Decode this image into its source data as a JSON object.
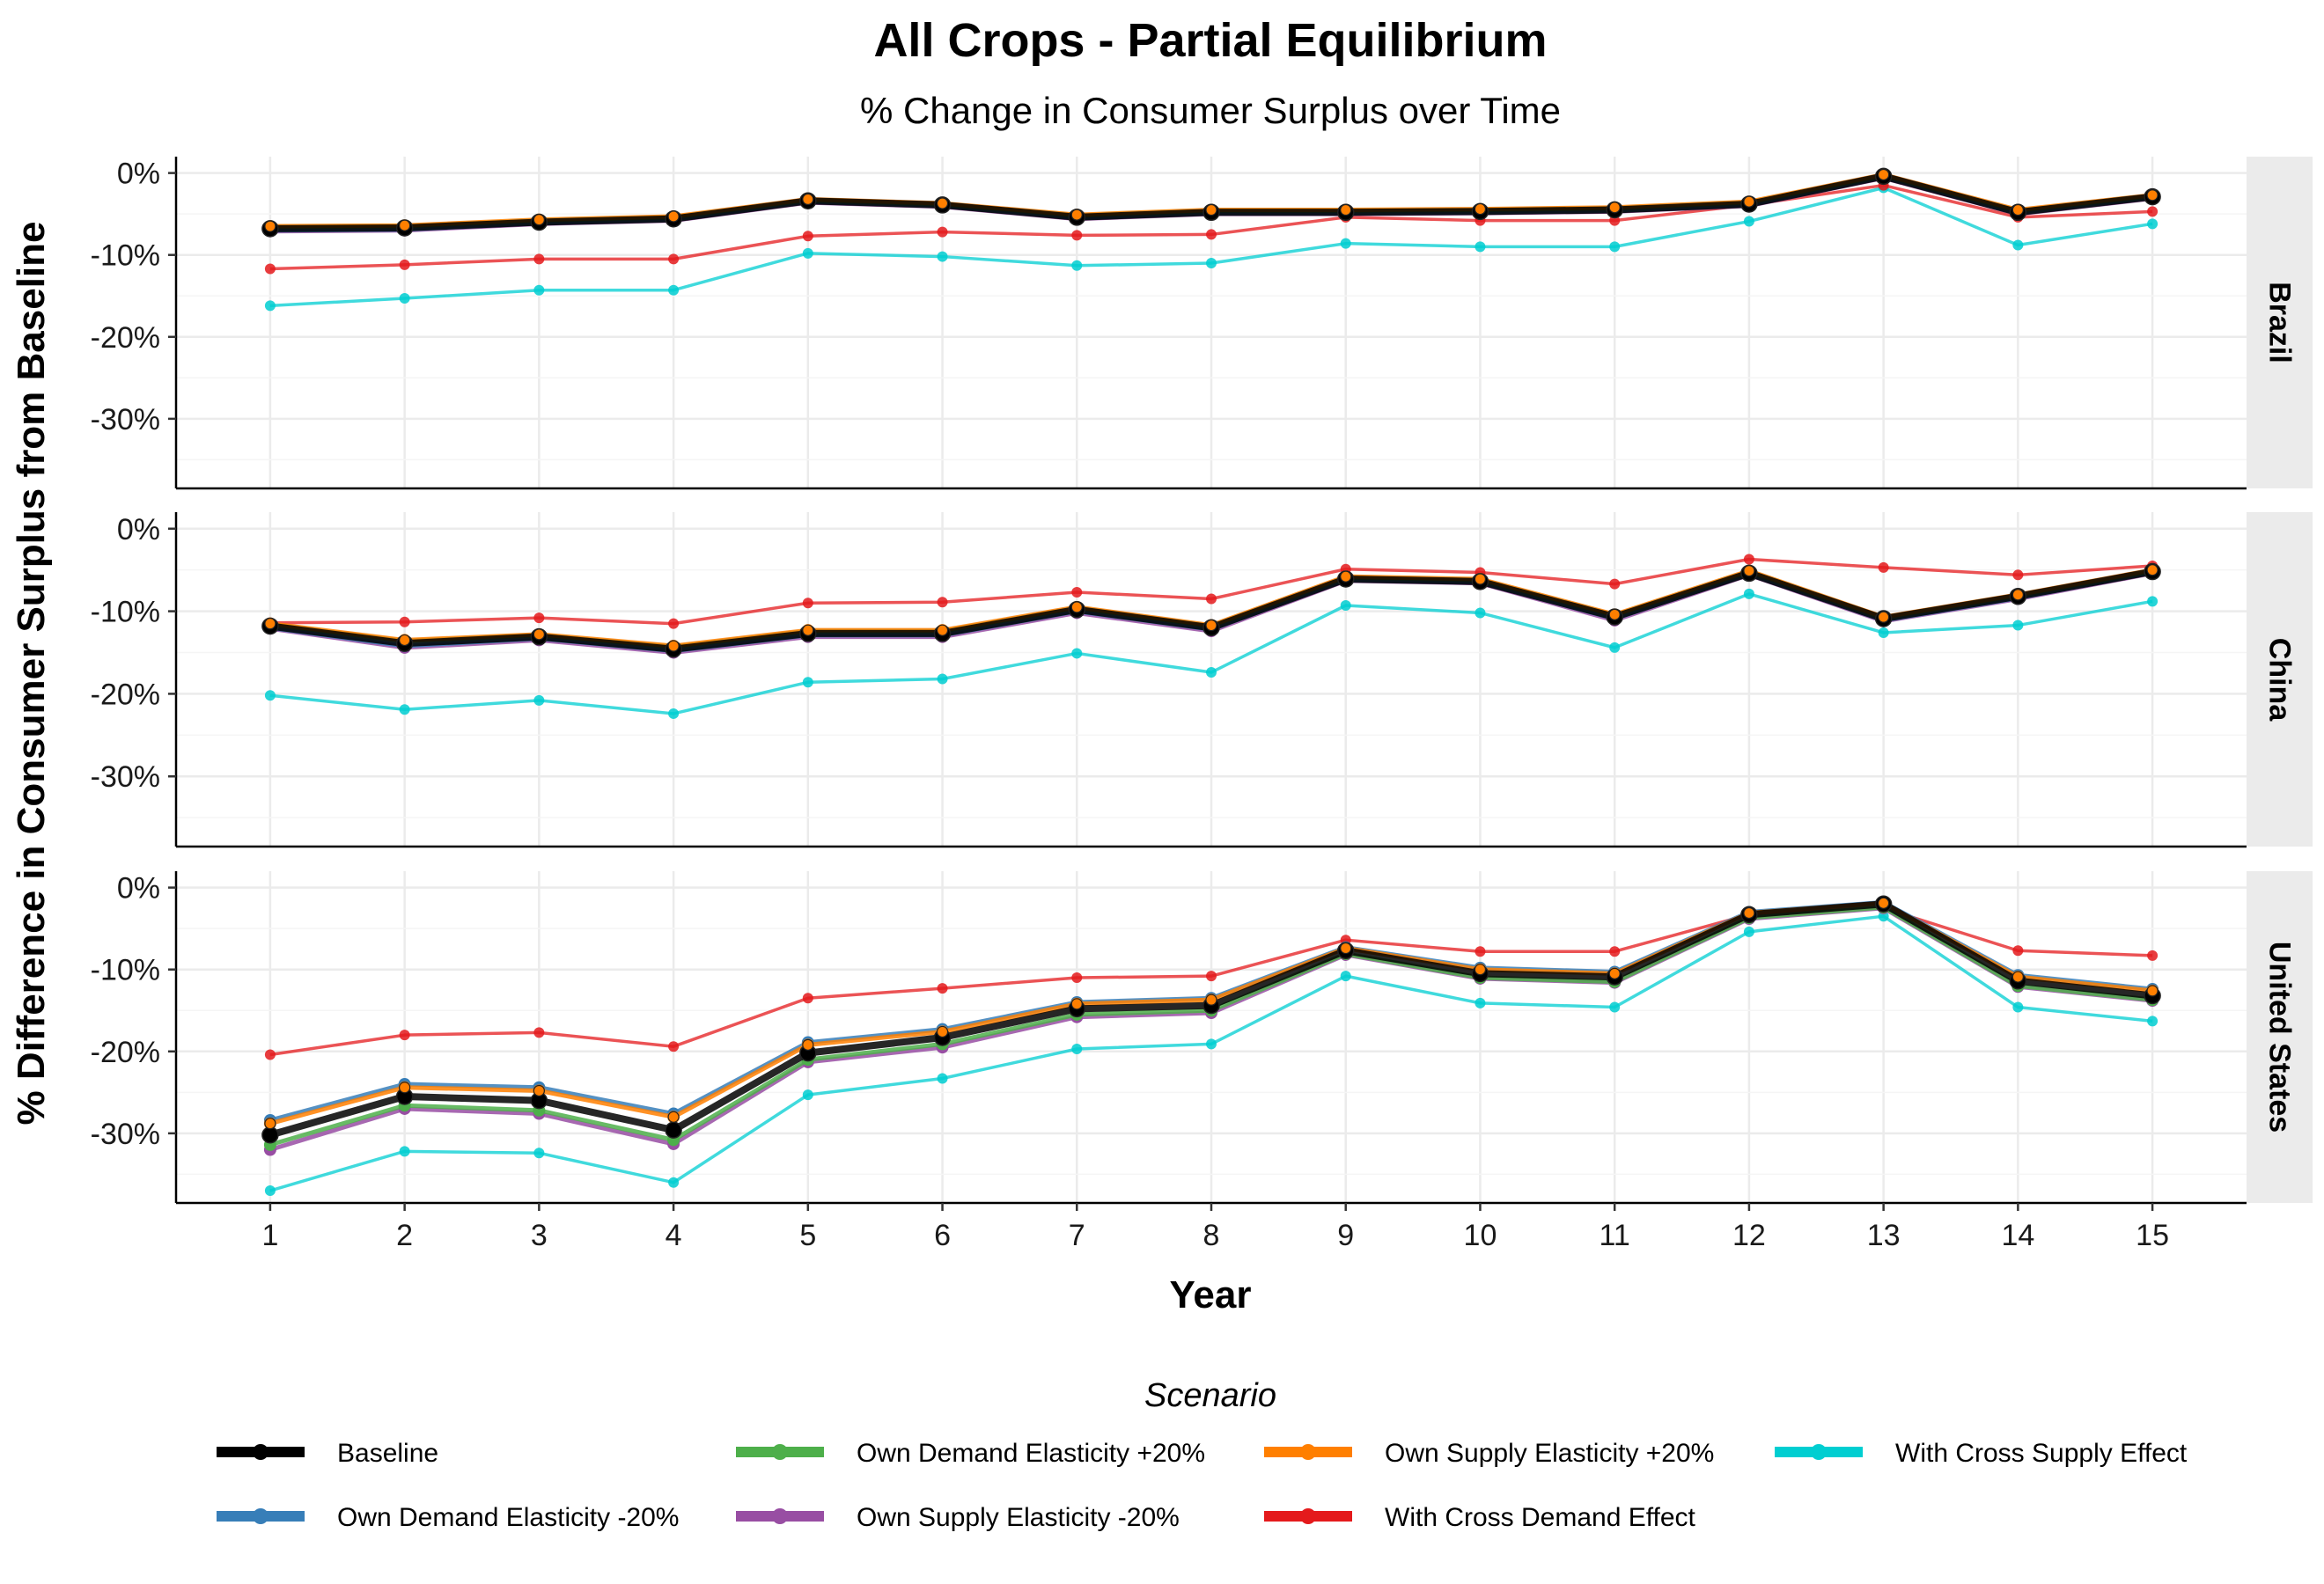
{
  "title": "All Crops - Partial Equilibrium",
  "subtitle": "% Change in Consumer Surplus over Time",
  "chart_data": {
    "type": "line",
    "xlabel": "Year",
    "ylabel": "% Difference in Consumer Surplus from Baseline",
    "x": [
      1,
      2,
      3,
      4,
      5,
      6,
      7,
      8,
      9,
      10,
      11,
      12,
      13,
      14,
      15
    ],
    "xlim": [
      0.3,
      15.7
    ],
    "ylim": [
      -38.5,
      2
    ],
    "y_ticks": [
      0,
      -10,
      -20,
      -30
    ],
    "y_tick_labels": [
      "0%",
      "-10%",
      "-20%",
      "-30%"
    ],
    "grid": true,
    "legend_title": "Scenario",
    "legend_position": "bottom",
    "panels": [
      {
        "label": "Brazil",
        "series": [
          {
            "name": "With Cross Supply Effect",
            "values": [
              -16.2,
              -15.3,
              -14.3,
              -14.3,
              -9.8,
              -10.2,
              -11.3,
              -11.0,
              -8.6,
              -9.0,
              -9.0,
              -5.9,
              -1.8,
              -8.8,
              -6.2
            ]
          },
          {
            "name": "With Cross Demand Effect",
            "values": [
              -11.7,
              -11.2,
              -10.5,
              -10.5,
              -7.7,
              -7.2,
              -7.6,
              -7.5,
              -5.4,
              -5.8,
              -5.8,
              -3.9,
              -1.5,
              -5.4,
              -4.7
            ]
          },
          {
            "name": "Own Supply Elasticity -20%",
            "values": [
              -7.1,
              -7.0,
              -6.2,
              -5.8,
              -3.6,
              -4.1,
              -5.6,
              -5.0,
              -5.0,
              -4.9,
              -4.7,
              -4.0,
              -0.6,
              -5.0,
              -3.1
            ]
          },
          {
            "name": "Own Demand Elasticity -20%",
            "values": [
              -7.0,
              -6.9,
              -6.1,
              -5.7,
              -3.5,
              -4.0,
              -5.5,
              -4.9,
              -4.9,
              -4.8,
              -4.6,
              -3.9,
              -0.5,
              -4.9,
              -3.0
            ]
          },
          {
            "name": "Own Demand Elasticity +20%",
            "values": [
              -6.6,
              -6.5,
              -5.8,
              -5.4,
              -3.3,
              -3.8,
              -5.2,
              -4.6,
              -4.6,
              -4.5,
              -4.3,
              -3.6,
              -0.3,
              -4.6,
              -2.8
            ]
          },
          {
            "name": "Own Supply Elasticity +20%",
            "values": [
              -6.5,
              -6.4,
              -5.7,
              -5.3,
              -3.2,
              -3.7,
              -5.1,
              -4.5,
              -4.5,
              -4.4,
              -4.2,
              -3.5,
              -0.2,
              -4.5,
              -2.7
            ]
          },
          {
            "name": "Baseline",
            "values": [
              -6.8,
              -6.7,
              -6.0,
              -5.6,
              -3.4,
              -3.9,
              -5.4,
              -4.8,
              -4.8,
              -4.7,
              -4.5,
              -3.8,
              -0.4,
              -4.8,
              -2.9
            ]
          }
        ]
      },
      {
        "label": "China",
        "series": [
          {
            "name": "With Cross Supply Effect",
            "values": [
              -20.2,
              -21.9,
              -20.8,
              -22.4,
              -18.6,
              -18.2,
              -15.1,
              -17.4,
              -9.3,
              -10.2,
              -14.4,
              -7.9,
              -12.6,
              -11.7,
              -8.8
            ]
          },
          {
            "name": "With Cross Demand Effect",
            "values": [
              -11.4,
              -11.3,
              -10.8,
              -11.5,
              -9.0,
              -8.9,
              -7.7,
              -8.5,
              -4.9,
              -5.3,
              -6.7,
              -3.7,
              -4.7,
              -5.6,
              -4.5
            ]
          },
          {
            "name": "Own Supply Elasticity -20%",
            "values": [
              -12.1,
              -14.4,
              -13.5,
              -15.0,
              -13.1,
              -13.1,
              -10.2,
              -12.4,
              -6.3,
              -6.6,
              -11.1,
              -5.6,
              -11.2,
              -8.5,
              -5.4
            ]
          },
          {
            "name": "Own Demand Elasticity -20%",
            "values": [
              -12.0,
              -14.2,
              -13.3,
              -14.8,
              -12.9,
              -12.9,
              -10.0,
              -12.2,
              -6.2,
              -6.5,
              -10.9,
              -5.5,
              -11.1,
              -8.4,
              -5.3
            ]
          },
          {
            "name": "Own Demand Elasticity +20%",
            "values": [
              -11.6,
              -13.6,
              -12.9,
              -14.3,
              -12.4,
              -12.4,
              -9.6,
              -11.8,
              -5.9,
              -6.2,
              -10.5,
              -5.2,
              -10.8,
              -8.1,
              -5.1
            ]
          },
          {
            "name": "Own Supply Elasticity +20%",
            "values": [
              -11.5,
              -13.5,
              -12.8,
              -14.2,
              -12.3,
              -12.3,
              -9.5,
              -11.7,
              -5.8,
              -6.1,
              -10.4,
              -5.1,
              -10.7,
              -8.0,
              -5.0
            ]
          },
          {
            "name": "Baseline",
            "values": [
              -11.8,
              -13.9,
              -13.1,
              -14.6,
              -12.7,
              -12.7,
              -9.8,
              -12.0,
              -6.1,
              -6.4,
              -10.7,
              -5.4,
              -10.9,
              -8.2,
              -5.2
            ]
          }
        ]
      },
      {
        "label": "United States",
        "series": [
          {
            "name": "With Cross Supply Effect",
            "values": [
              -37.0,
              -32.2,
              -32.4,
              -36.0,
              -25.3,
              -23.3,
              -19.7,
              -19.1,
              -10.8,
              -14.1,
              -14.6,
              -5.4,
              -3.5,
              -14.6,
              -16.3
            ]
          },
          {
            "name": "With Cross Demand Effect",
            "values": [
              -20.4,
              -18.0,
              -17.7,
              -19.4,
              -13.5,
              -12.3,
              -11.0,
              -10.8,
              -6.4,
              -7.8,
              -7.8,
              -3.3,
              -2.5,
              -7.7,
              -8.3
            ]
          },
          {
            "name": "Own Supply Elasticity -20%",
            "values": [
              -32.0,
              -27.0,
              -27.6,
              -31.3,
              -21.3,
              -19.5,
              -15.8,
              -15.3,
              -8.2,
              -11.1,
              -11.6,
              -3.8,
              -2.5,
              -12.1,
              -13.8
            ]
          },
          {
            "name": "Own Demand Elasticity -20%",
            "values": [
              -28.4,
              -24.0,
              -24.4,
              -27.6,
              -18.9,
              -17.3,
              -14.0,
              -13.5,
              -7.3,
              -9.8,
              -10.3,
              -3.0,
              -1.8,
              -10.7,
              -12.4
            ]
          },
          {
            "name": "Own Demand Elasticity +20%",
            "values": [
              -31.4,
              -26.6,
              -27.2,
              -30.8,
              -21.0,
              -19.1,
              -15.5,
              -15.0,
              -8.1,
              -11.0,
              -11.5,
              -3.7,
              -2.4,
              -12.0,
              -13.7
            ]
          },
          {
            "name": "Own Supply Elasticity +20%",
            "values": [
              -28.8,
              -24.4,
              -24.8,
              -28.0,
              -19.2,
              -17.6,
              -14.2,
              -13.7,
              -7.4,
              -10.0,
              -10.5,
              -3.1,
              -1.9,
              -10.9,
              -12.6
            ]
          },
          {
            "name": "Baseline",
            "values": [
              -30.2,
              -25.5,
              -26.0,
              -29.6,
              -20.2,
              -18.3,
              -14.8,
              -14.4,
              -7.7,
              -10.5,
              -10.9,
              -3.3,
              -2.0,
              -11.4,
              -13.2
            ]
          }
        ]
      }
    ],
    "legend": [
      {
        "name": "Baseline",
        "color": "#000000"
      },
      {
        "name": "Own Demand Elasticity -20%",
        "color": "#377EB8"
      },
      {
        "name": "Own Demand Elasticity +20%",
        "color": "#4DAF4A"
      },
      {
        "name": "Own Supply Elasticity -20%",
        "color": "#984EA3"
      },
      {
        "name": "Own Supply Elasticity +20%",
        "color": "#FF7F00"
      },
      {
        "name": "With Cross Demand Effect",
        "color": "#E41A1C"
      },
      {
        "name": "With Cross Supply Effect",
        "color": "#00CED1"
      }
    ]
  }
}
